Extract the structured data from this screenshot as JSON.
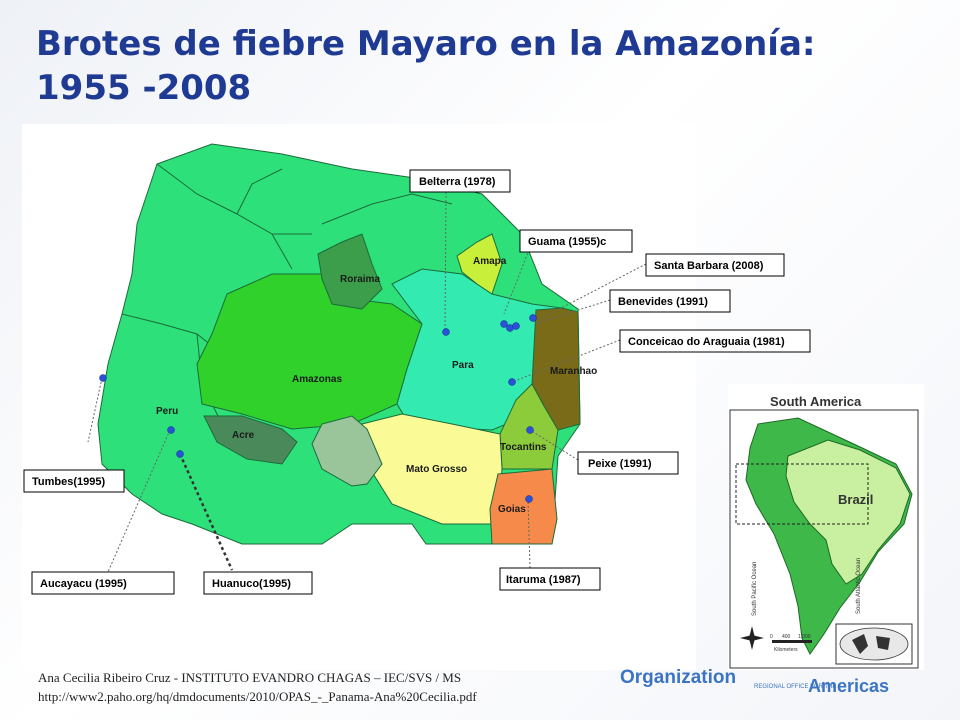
{
  "slide": {
    "title_line1": "Brotes de fiebre Mayaro en la Amazonía:",
    "title_line2": "1955 -2008"
  },
  "map": {
    "region_labels": {
      "roraima": "Roraima",
      "amapa": "Amapa",
      "amazonas": "Amazonas",
      "para": "Para",
      "maranhao": "Maranhao",
      "acre": "Acre",
      "peru": "Peru",
      "mato_grosso": "Mato Grosso",
      "tocantins": "Tocantins",
      "goias": "Goias"
    },
    "outbreaks": {
      "belterra": "Belterra (1978)",
      "guama": "Guama (1955)c",
      "santa_barbara": "Santa Barbara (2008)",
      "benevides": "Benevides (1991)",
      "conceicao": "Conceicao do Araguaia (1981)",
      "peixe": "Peixe (1991)",
      "itaruma": "Itaruma (1987)",
      "tumbes": "Tumbes(1995)",
      "aucayacu": "Aucayacu (1995)",
      "huanuco": "Huanuco(1995)"
    },
    "colors": {
      "base_green": "#2ee07a",
      "amazonas": "#2fd12a",
      "para": "#33ebb0",
      "roraima": "#3c9e4a",
      "amapa": "#c8ef3a",
      "maranhao": "#7a6b18",
      "acre": "#4a8a5a",
      "mato_grosso": "#fafa96",
      "tocantins": "#8ccc3a",
      "goias": "#f58a4a",
      "bolivia": "#9ac49a",
      "point": "#2a52d8"
    }
  },
  "inset": {
    "title": "South America",
    "country": "Brazil",
    "ocean_pacific": "South Pacific Ocean",
    "ocean_atlantic": "South Atlantic Ocean",
    "scale_label": "Kilometers",
    "scale_ticks": [
      "0",
      "400",
      "1,000"
    ]
  },
  "credit": {
    "line1": "Ana Cecilia Ribeiro Cruz - INSTITUTO EVANDRO CHAGAS – IEC/SVS / MS",
    "line2": "http://www2.paho.org/hq/dmdocuments/2010/OPAS_-_Panama-Ana%20Cecilia.pdf"
  },
  "logos": {
    "organization": "Organization",
    "americas_small": "REGIONAL OFFICE FOR THE",
    "americas_big": "Americas"
  }
}
